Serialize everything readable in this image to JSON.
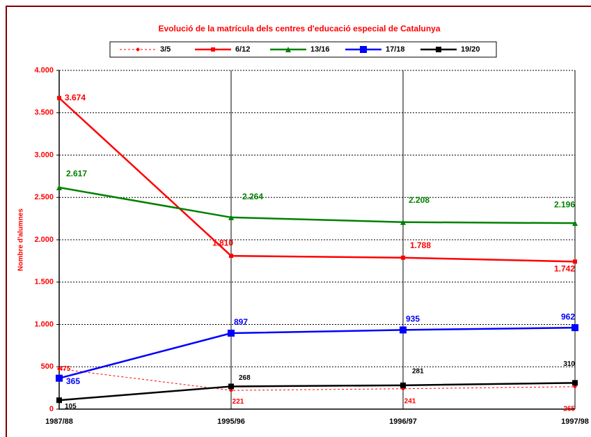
{
  "chart_data": {
    "type": "line",
    "title": "Evolució de la matrícula dels centres d'educació especial de Catalunya",
    "y_label": "Nombre d'alumnes",
    "categories": [
      "1987/88",
      "1995/96",
      "1996/97",
      "1997/98"
    ],
    "series": [
      {
        "name": "3/5",
        "color": "#ff0000",
        "values": [
          475,
          221,
          241,
          265
        ]
      },
      {
        "name": "6/12",
        "color": "#ff0000",
        "values": [
          3674,
          1810,
          1788,
          1742
        ],
        "value_labels": [
          "3.674",
          "1.810",
          "1.788",
          "1.742"
        ]
      },
      {
        "name": "13/16",
        "color": "#008000",
        "values": [
          2617,
          2264,
          2208,
          2196
        ],
        "value_labels": [
          "2.617",
          "2.264",
          "2.208",
          "2.196"
        ]
      },
      {
        "name": "17/18",
        "color": "#0000ff",
        "values": [
          365,
          897,
          935,
          962
        ]
      },
      {
        "name": "19/20",
        "color": "#000000",
        "values": [
          105,
          268,
          281,
          310
        ]
      }
    ],
    "ylim": [
      0,
      4000
    ],
    "yticks": [
      0,
      500,
      {
        "value": 1000,
        "label": "1.000"
      },
      {
        "value": 1500,
        "label": "1.500"
      },
      {
        "value": 2000,
        "label": "2.000"
      },
      {
        "value": 2500,
        "label": "2.500"
      },
      {
        "value": 3000,
        "label": "3.000"
      },
      {
        "value": 3500,
        "label": "3.500"
      },
      {
        "value": 4000,
        "label": "4.000"
      }
    ],
    "grid": true
  }
}
